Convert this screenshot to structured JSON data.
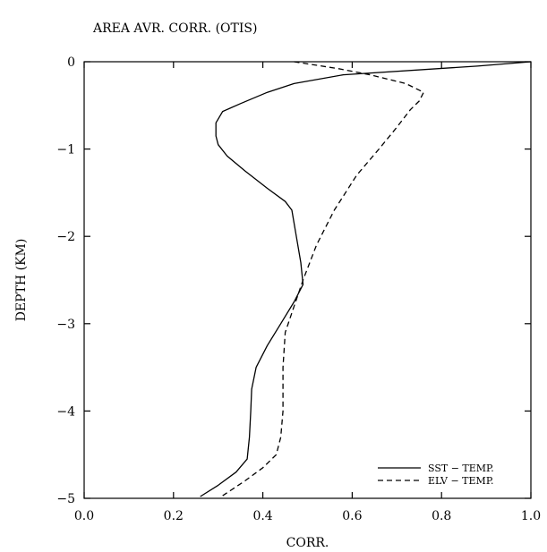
{
  "chart_data": {
    "type": "line",
    "title": "AREA AVR. CORR. (OTIS)",
    "xlabel": "CORR.",
    "ylabel": "DEPTH (KM)",
    "xlim": [
      0.0,
      1.0
    ],
    "ylim": [
      -5,
      0
    ],
    "x_ticks": [
      0.0,
      0.2,
      0.4,
      0.6,
      0.8,
      1.0
    ],
    "x_tick_labels": [
      "0.0",
      "0.2",
      "0.4",
      "0.6",
      "0.8",
      "1.0"
    ],
    "y_ticks": [
      0,
      -1,
      -2,
      -3,
      -4,
      -5
    ],
    "y_tick_labels": [
      "0",
      "−1",
      "−2",
      "−3",
      "−4",
      "−5"
    ],
    "grid": false,
    "legend_position": "bottom-right",
    "series": [
      {
        "name": "SST − TEMP.",
        "style": "solid",
        "color": "#000000",
        "points": [
          {
            "x": 1.0,
            "y": 0.0
          },
          {
            "x": 0.88,
            "y": -0.05
          },
          {
            "x": 0.58,
            "y": -0.15
          },
          {
            "x": 0.47,
            "y": -0.25
          },
          {
            "x": 0.41,
            "y": -0.35
          },
          {
            "x": 0.35,
            "y": -0.48
          },
          {
            "x": 0.31,
            "y": -0.57
          },
          {
            "x": 0.295,
            "y": -0.7
          },
          {
            "x": 0.295,
            "y": -0.85
          },
          {
            "x": 0.3,
            "y": -0.95
          },
          {
            "x": 0.32,
            "y": -1.08
          },
          {
            "x": 0.36,
            "y": -1.25
          },
          {
            "x": 0.41,
            "y": -1.45
          },
          {
            "x": 0.45,
            "y": -1.6
          },
          {
            "x": 0.465,
            "y": -1.7
          },
          {
            "x": 0.475,
            "y": -2.0
          },
          {
            "x": 0.485,
            "y": -2.3
          },
          {
            "x": 0.49,
            "y": -2.55
          },
          {
            "x": 0.47,
            "y": -2.75
          },
          {
            "x": 0.44,
            "y": -3.0
          },
          {
            "x": 0.41,
            "y": -3.25
          },
          {
            "x": 0.385,
            "y": -3.5
          },
          {
            "x": 0.375,
            "y": -3.75
          },
          {
            "x": 0.373,
            "y": -4.0
          },
          {
            "x": 0.37,
            "y": -4.3
          },
          {
            "x": 0.365,
            "y": -4.55
          },
          {
            "x": 0.34,
            "y": -4.7
          },
          {
            "x": 0.3,
            "y": -4.85
          },
          {
            "x": 0.26,
            "y": -4.98
          }
        ]
      },
      {
        "name": "ELV − TEMP.",
        "style": "dashed",
        "color": "#000000",
        "points": [
          {
            "x": 0.47,
            "y": 0.0
          },
          {
            "x": 0.57,
            "y": -0.08
          },
          {
            "x": 0.64,
            "y": -0.15
          },
          {
            "x": 0.72,
            "y": -0.25
          },
          {
            "x": 0.76,
            "y": -0.35
          },
          {
            "x": 0.75,
            "y": -0.45
          },
          {
            "x": 0.73,
            "y": -0.55
          },
          {
            "x": 0.7,
            "y": -0.75
          },
          {
            "x": 0.66,
            "y": -1.0
          },
          {
            "x": 0.61,
            "y": -1.3
          },
          {
            "x": 0.56,
            "y": -1.7
          },
          {
            "x": 0.52,
            "y": -2.1
          },
          {
            "x": 0.49,
            "y": -2.5
          },
          {
            "x": 0.47,
            "y": -2.8
          },
          {
            "x": 0.45,
            "y": -3.1
          },
          {
            "x": 0.445,
            "y": -3.5
          },
          {
            "x": 0.445,
            "y": -4.0
          },
          {
            "x": 0.44,
            "y": -4.3
          },
          {
            "x": 0.43,
            "y": -4.5
          },
          {
            "x": 0.4,
            "y": -4.65
          },
          {
            "x": 0.36,
            "y": -4.8
          },
          {
            "x": 0.31,
            "y": -4.97
          }
        ]
      }
    ]
  }
}
